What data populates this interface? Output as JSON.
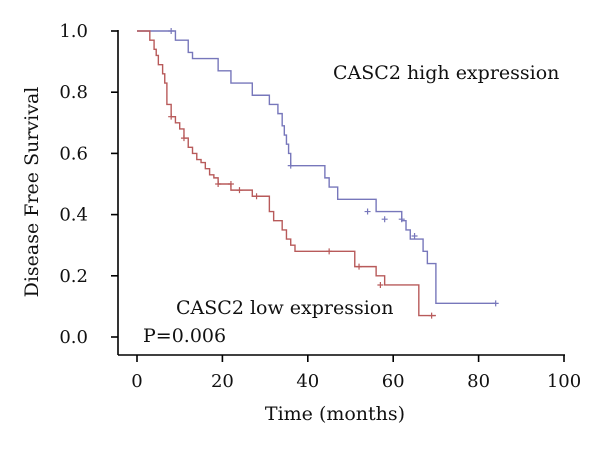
{
  "chart_data": {
    "type": "line",
    "subtype": "kaplan-meier",
    "title": "",
    "xlabel": "Time (months)",
    "ylabel": "Disease Free Survival",
    "xlim": [
      0,
      100
    ],
    "ylim": [
      0,
      1.0
    ],
    "xticks": [
      0,
      20,
      40,
      60,
      80,
      100
    ],
    "yticks": [
      "0.0",
      "0.2",
      "0.4",
      "0.6",
      "0.8",
      "1.0"
    ],
    "grid": false,
    "series": [
      {
        "name": "CASC2 high expression",
        "color": "#7777bb",
        "steps": [
          [
            0,
            1.0
          ],
          [
            8,
            1.0
          ],
          [
            9,
            0.97
          ],
          [
            12,
            0.93
          ],
          [
            13,
            0.91
          ],
          [
            18,
            0.91
          ],
          [
            19,
            0.87
          ],
          [
            22,
            0.83
          ],
          [
            26,
            0.83
          ],
          [
            27,
            0.79
          ],
          [
            31,
            0.76
          ],
          [
            33,
            0.73
          ],
          [
            34,
            0.69
          ],
          [
            34.5,
            0.66
          ],
          [
            35,
            0.63
          ],
          [
            35.5,
            0.6
          ],
          [
            36,
            0.56
          ],
          [
            43,
            0.56
          ],
          [
            44,
            0.52
          ],
          [
            45,
            0.49
          ],
          [
            47,
            0.45
          ],
          [
            55,
            0.45
          ],
          [
            56,
            0.41
          ],
          [
            61,
            0.41
          ],
          [
            62,
            0.38
          ],
          [
            63,
            0.35
          ],
          [
            64,
            0.32
          ],
          [
            66,
            0.32
          ],
          [
            67,
            0.28
          ],
          [
            68,
            0.24
          ],
          [
            69,
            0.24
          ],
          [
            70,
            0.11
          ],
          [
            84,
            0.11
          ]
        ],
        "censored": [
          [
            8,
            1.0
          ],
          [
            36,
            0.56
          ],
          [
            54,
            0.41
          ],
          [
            58,
            0.385
          ],
          [
            62,
            0.385
          ],
          [
            65,
            0.33
          ],
          [
            84,
            0.11
          ]
        ]
      },
      {
        "name": "CASC2 low expression",
        "color": "#b85a5a",
        "steps": [
          [
            0,
            1.0
          ],
          [
            2,
            1.0
          ],
          [
            3,
            0.97
          ],
          [
            4,
            0.94
          ],
          [
            4.5,
            0.92
          ],
          [
            5,
            0.89
          ],
          [
            6,
            0.86
          ],
          [
            6.5,
            0.83
          ],
          [
            7,
            0.76
          ],
          [
            8,
            0.72
          ],
          [
            9,
            0.7
          ],
          [
            10,
            0.68
          ],
          [
            11,
            0.65
          ],
          [
            12,
            0.62
          ],
          [
            13,
            0.6
          ],
          [
            14,
            0.58
          ],
          [
            15,
            0.57
          ],
          [
            16,
            0.55
          ],
          [
            17,
            0.53
          ],
          [
            18,
            0.52
          ],
          [
            19,
            0.5
          ],
          [
            21,
            0.5
          ],
          [
            22,
            0.48
          ],
          [
            26,
            0.48
          ],
          [
            27,
            0.46
          ],
          [
            30,
            0.46
          ],
          [
            31,
            0.41
          ],
          [
            32,
            0.38
          ],
          [
            34,
            0.35
          ],
          [
            35,
            0.32
          ],
          [
            36,
            0.3
          ],
          [
            37,
            0.28
          ],
          [
            50,
            0.28
          ],
          [
            51,
            0.23
          ],
          [
            55,
            0.23
          ],
          [
            56,
            0.2
          ],
          [
            58,
            0.17
          ],
          [
            65,
            0.17
          ],
          [
            66,
            0.07
          ],
          [
            70,
            0.07
          ]
        ],
        "censored": [
          [
            8,
            0.72
          ],
          [
            11,
            0.65
          ],
          [
            19,
            0.5
          ],
          [
            22,
            0.5
          ],
          [
            24,
            0.48
          ],
          [
            28,
            0.46
          ],
          [
            45,
            0.28
          ],
          [
            52,
            0.23
          ],
          [
            57,
            0.17
          ],
          [
            69,
            0.07
          ]
        ]
      }
    ],
    "annotations": [
      {
        "text": "CASC2 high expression"
      },
      {
        "text": "CASC2 low expression"
      },
      {
        "text": "P=0.006"
      }
    ]
  }
}
